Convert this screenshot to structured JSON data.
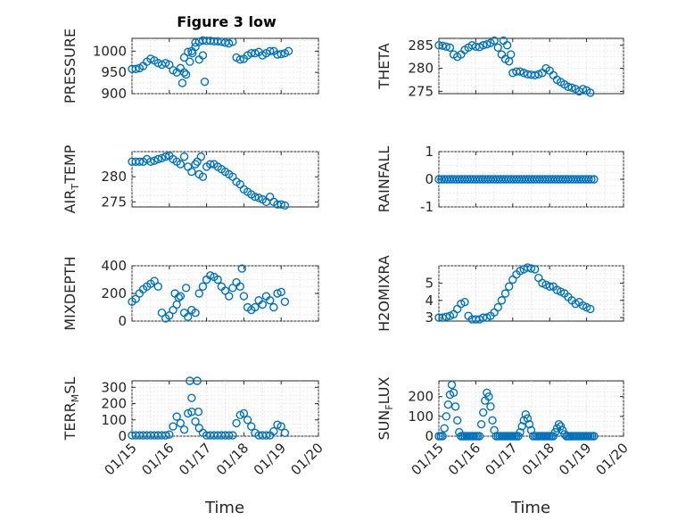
{
  "title": "Figure 3 low",
  "x_axis": {
    "label": "Time",
    "tick_labels": [
      "01/15",
      "01/16",
      "01/17",
      "01/18",
      "01/19",
      "01/20"
    ],
    "xlim": [
      15,
      20
    ]
  },
  "marker_color": "#0072BD",
  "chart_data": [
    {
      "type": "scatter",
      "ylabel": "PRESSURE",
      "ylim": [
        900,
        1030
      ],
      "yticks": [
        900,
        950,
        1000
      ],
      "tick_labels": [
        "900",
        "950",
        "1000"
      ],
      "subscript": "",
      "x": [
        15.0,
        15.1,
        15.2,
        15.3,
        15.4,
        15.5,
        15.6,
        15.7,
        15.8,
        15.9,
        16.0,
        16.1,
        16.2,
        16.3,
        16.4,
        16.5,
        16.6,
        16.7,
        16.8,
        16.9,
        17.0,
        17.1,
        17.2,
        17.3,
        17.4,
        17.5,
        17.6,
        17.7,
        17.8,
        17.9,
        18.0,
        18.1,
        18.2,
        18.3,
        18.4,
        18.5,
        18.6,
        18.7,
        18.8,
        18.9,
        19.0,
        19.1,
        19.2,
        16.35,
        16.45,
        16.55,
        16.8,
        16.9,
        16.95,
        16.7,
        16.62,
        16.4
      ],
      "y": [
        958,
        958,
        960,
        965,
        975,
        982,
        978,
        972,
        968,
        972,
        968,
        955,
        950,
        960,
        985,
        998,
        1000,
        1020,
        1022,
        1025,
        1024,
        1024,
        1023,
        1023,
        1022,
        1020,
        1018,
        1022,
        985,
        980,
        982,
        990,
        995,
        995,
        998,
        990,
        995,
        1000,
        1000,
        992,
        993,
        995,
        1000,
        925,
        945,
        975,
        980,
        990,
        928,
        1010,
        995,
        950
      ]
    },
    {
      "type": "scatter",
      "ylabel": "THETA",
      "ylim": [
        274.5,
        286.5
      ],
      "yticks": [
        275,
        280,
        285
      ],
      "tick_labels": [
        "275",
        "280",
        "285"
      ],
      "subscript": "",
      "x": [
        15.0,
        15.1,
        15.2,
        15.3,
        15.4,
        15.5,
        15.6,
        15.7,
        15.8,
        15.9,
        16.0,
        16.1,
        16.2,
        16.3,
        16.4,
        16.5,
        16.6,
        16.7,
        16.8,
        16.9,
        17.0,
        17.1,
        17.2,
        17.3,
        17.4,
        17.5,
        17.6,
        17.7,
        17.8,
        17.9,
        18.0,
        18.1,
        18.2,
        18.3,
        18.4,
        18.5,
        18.6,
        18.7,
        18.8,
        18.9,
        19.0,
        19.1,
        16.75,
        16.85,
        16.95
      ],
      "y": [
        285,
        284.9,
        284.7,
        284.5,
        283,
        282.5,
        283,
        284,
        284.5,
        285,
        284.7,
        284.6,
        285,
        285.2,
        285.5,
        286,
        284.5,
        283,
        282,
        281.5,
        279,
        279.3,
        279.3,
        279,
        278.7,
        278.6,
        278.5,
        278.7,
        279,
        280,
        279.5,
        278.5,
        277.5,
        277,
        276.5,
        276,
        275.8,
        275.5,
        275,
        275.5,
        275.2,
        274.7,
        286,
        285,
        283
      ]
    },
    {
      "type": "scatter",
      "ylabel": "AIR_TEMP",
      "ylim": [
        274,
        285
      ],
      "yticks": [
        275,
        280
      ],
      "tick_labels": [
        "275",
        "280"
      ],
      "subscript": "T",
      "x": [
        15.0,
        15.1,
        15.2,
        15.3,
        15.4,
        15.5,
        15.6,
        15.7,
        15.8,
        15.9,
        16.0,
        16.1,
        16.2,
        16.3,
        16.4,
        16.5,
        16.6,
        16.7,
        16.8,
        16.9,
        17.0,
        17.1,
        17.2,
        17.3,
        17.4,
        17.5,
        17.6,
        17.7,
        17.8,
        17.9,
        18.0,
        18.1,
        18.2,
        18.3,
        18.4,
        18.5,
        18.6,
        18.7,
        18.8,
        18.9,
        19.0,
        19.1,
        16.75,
        16.85
      ],
      "y": [
        283,
        283,
        283,
        283,
        283.5,
        283,
        283.2,
        283.5,
        283.7,
        284,
        284.2,
        283.5,
        283,
        282.5,
        284,
        282,
        281,
        282.5,
        280.5,
        280,
        282,
        282.5,
        282.5,
        282,
        281.5,
        281,
        280.5,
        280,
        279,
        278.5,
        277.5,
        277,
        276.5,
        276,
        275.8,
        275.5,
        275,
        276,
        275,
        274.5,
        274.5,
        274.3,
        283,
        284
      ]
    },
    {
      "type": "scatter",
      "ylabel": "RAINFALL",
      "ylim": [
        -1,
        1
      ],
      "yticks": [
        -1,
        0,
        1
      ],
      "tick_labels": [
        "-1",
        "0",
        "1"
      ],
      "subscript": "",
      "x": [
        15.0,
        15.07,
        15.14,
        15.21,
        15.28,
        15.35,
        15.42,
        15.49,
        15.56,
        15.63,
        15.7,
        15.77,
        15.84,
        15.91,
        15.98,
        16.05,
        16.12,
        16.19,
        16.26,
        16.33,
        16.4,
        16.47,
        16.54,
        16.61,
        16.68,
        16.75,
        16.82,
        16.89,
        16.96,
        17.03,
        17.1,
        17.17,
        17.24,
        17.31,
        17.38,
        17.45,
        17.52,
        17.59,
        17.66,
        17.73,
        17.8,
        17.87,
        17.94,
        18.01,
        18.08,
        18.15,
        18.22,
        18.29,
        18.36,
        18.43,
        18.5,
        18.57,
        18.64,
        18.71,
        18.78,
        18.85,
        18.92,
        18.99,
        19.06,
        19.13,
        19.2
      ],
      "y": [
        0,
        0,
        0,
        0,
        0,
        0,
        0,
        0,
        0,
        0,
        0,
        0,
        0,
        0,
        0,
        0,
        0,
        0,
        0,
        0,
        0,
        0,
        0,
        0,
        0,
        0,
        0,
        0,
        0,
        0,
        0,
        0,
        0,
        0,
        0,
        0,
        0,
        0,
        0,
        0,
        0,
        0,
        0,
        0,
        0,
        0,
        0,
        0,
        0,
        0,
        0,
        0,
        0,
        0,
        0,
        0,
        0,
        0,
        0,
        0,
        0
      ]
    },
    {
      "type": "scatter",
      "ylabel": "MIXDEPTH",
      "ylim": [
        0,
        400
      ],
      "yticks": [
        0,
        200,
        400
      ],
      "tick_labels": [
        "0",
        "200",
        "400"
      ],
      "subscript": "",
      "x": [
        15.0,
        15.1,
        15.2,
        15.3,
        15.4,
        15.5,
        15.6,
        15.7,
        15.8,
        15.9,
        16.0,
        16.1,
        16.2,
        16.3,
        16.4,
        16.5,
        16.6,
        16.7,
        16.8,
        16.9,
        17.0,
        17.1,
        17.2,
        17.3,
        17.4,
        17.5,
        17.6,
        17.7,
        17.8,
        17.9,
        18.0,
        18.1,
        18.2,
        18.3,
        18.4,
        18.5,
        18.6,
        18.7,
        18.8,
        18.9,
        19.0,
        19.1,
        16.15,
        16.25,
        16.45,
        17.95
      ],
      "y": [
        140,
        160,
        200,
        230,
        250,
        270,
        290,
        250,
        60,
        20,
        40,
        80,
        120,
        180,
        60,
        30,
        80,
        60,
        200,
        250,
        300,
        330,
        320,
        300,
        250,
        220,
        180,
        240,
        280,
        250,
        180,
        100,
        80,
        100,
        150,
        120,
        180,
        150,
        100,
        200,
        210,
        140,
        200,
        170,
        240,
        380
      ]
    },
    {
      "type": "scatter",
      "ylabel": "H2OMIXRA",
      "ylim": [
        2.8,
        6
      ],
      "yticks": [
        3,
        4,
        5
      ],
      "tick_labels": [
        "3",
        "4",
        "5"
      ],
      "subscript": "",
      "x": [
        15.0,
        15.1,
        15.2,
        15.3,
        15.4,
        15.5,
        15.6,
        15.7,
        15.8,
        15.9,
        16.0,
        16.1,
        16.2,
        16.3,
        16.4,
        16.5,
        16.6,
        16.7,
        16.8,
        16.9,
        17.0,
        17.1,
        17.2,
        17.3,
        17.4,
        17.5,
        17.6,
        17.7,
        17.8,
        17.9,
        18.0,
        18.1,
        18.2,
        18.3,
        18.4,
        18.5,
        18.6,
        18.7,
        18.8,
        18.9,
        19.0,
        19.1
      ],
      "y": [
        3.0,
        3.0,
        3.05,
        3.1,
        3.2,
        3.5,
        3.8,
        3.9,
        3.1,
        2.9,
        2.9,
        2.9,
        3.0,
        3.0,
        3.1,
        3.3,
        3.6,
        4.0,
        4.4,
        4.8,
        5.2,
        5.5,
        5.7,
        5.8,
        5.9,
        5.85,
        5.8,
        5.3,
        5.0,
        4.9,
        4.8,
        4.8,
        4.6,
        4.5,
        4.4,
        4.2,
        4.0,
        3.8,
        3.9,
        3.7,
        3.6,
        3.5
      ]
    },
    {
      "type": "scatter",
      "ylabel": "TERR_SL",
      "ylim": [
        0,
        340
      ],
      "yticks": [
        0,
        100,
        200,
        300
      ],
      "tick_labels": [
        "0",
        "100",
        "200",
        "300"
      ],
      "subscript": "M",
      "x": [
        15.0,
        15.1,
        15.2,
        15.3,
        15.4,
        15.5,
        15.6,
        15.7,
        15.8,
        15.9,
        16.0,
        16.1,
        16.2,
        16.3,
        16.4,
        16.5,
        16.6,
        16.7,
        16.8,
        16.9,
        17.0,
        17.1,
        17.2,
        17.3,
        17.4,
        17.5,
        17.6,
        17.7,
        17.8,
        17.9,
        18.0,
        18.1,
        18.2,
        18.3,
        18.4,
        18.5,
        18.6,
        18.7,
        18.8,
        18.9,
        19.0,
        19.1,
        16.55,
        16.6,
        16.75,
        16.78
      ],
      "y": [
        5,
        5,
        5,
        5,
        5,
        5,
        5,
        5,
        5,
        5,
        10,
        60,
        120,
        80,
        40,
        140,
        150,
        90,
        50,
        20,
        5,
        5,
        5,
        5,
        5,
        5,
        5,
        5,
        80,
        130,
        140,
        100,
        60,
        20,
        5,
        5,
        5,
        5,
        30,
        70,
        60,
        20,
        340,
        235,
        340,
        150
      ]
    },
    {
      "type": "scatter",
      "ylabel": "SUN_LUX",
      "ylim": [
        0,
        280
      ],
      "yticks": [
        0,
        100,
        200
      ],
      "tick_labels": [
        "0",
        "100",
        "200"
      ],
      "subscript": "F",
      "x": [
        15.0,
        15.05,
        15.1,
        15.15,
        15.2,
        15.25,
        15.3,
        15.35,
        15.4,
        15.45,
        15.5,
        15.55,
        15.6,
        15.65,
        15.7,
        15.75,
        15.8,
        15.85,
        15.9,
        15.95,
        16.0,
        16.05,
        16.1,
        16.15,
        16.2,
        16.25,
        16.3,
        16.35,
        16.4,
        16.45,
        16.5,
        16.55,
        16.6,
        16.65,
        16.7,
        16.75,
        16.8,
        16.85,
        16.9,
        16.95,
        17.0,
        17.05,
        17.1,
        17.15,
        17.2,
        17.25,
        17.3,
        17.35,
        17.4,
        17.45,
        17.5,
        17.55,
        17.6,
        17.65,
        17.7,
        17.75,
        17.8,
        17.85,
        17.9,
        17.95,
        18.0,
        18.05,
        18.1,
        18.15,
        18.2,
        18.25,
        18.3,
        18.35,
        18.4,
        18.45,
        18.5,
        18.55,
        18.6,
        18.65,
        18.7,
        18.75,
        18.8,
        18.85,
        18.9,
        18.95,
        19.0,
        19.05,
        19.1,
        19.15,
        19.2
      ],
      "y": [
        0,
        0,
        0,
        40,
        100,
        160,
        210,
        260,
        220,
        150,
        80,
        20,
        0,
        0,
        0,
        0,
        0,
        0,
        0,
        0,
        0,
        0,
        0,
        60,
        120,
        180,
        220,
        200,
        150,
        80,
        30,
        0,
        0,
        0,
        0,
        0,
        0,
        0,
        0,
        0,
        0,
        0,
        0,
        0,
        20,
        50,
        80,
        110,
        90,
        60,
        30,
        0,
        0,
        0,
        0,
        0,
        0,
        0,
        0,
        0,
        0,
        0,
        0,
        20,
        40,
        60,
        50,
        30,
        10,
        0,
        0,
        0,
        0,
        0,
        0,
        0,
        0,
        0,
        0,
        0,
        0,
        0,
        0,
        0,
        0
      ]
    }
  ]
}
